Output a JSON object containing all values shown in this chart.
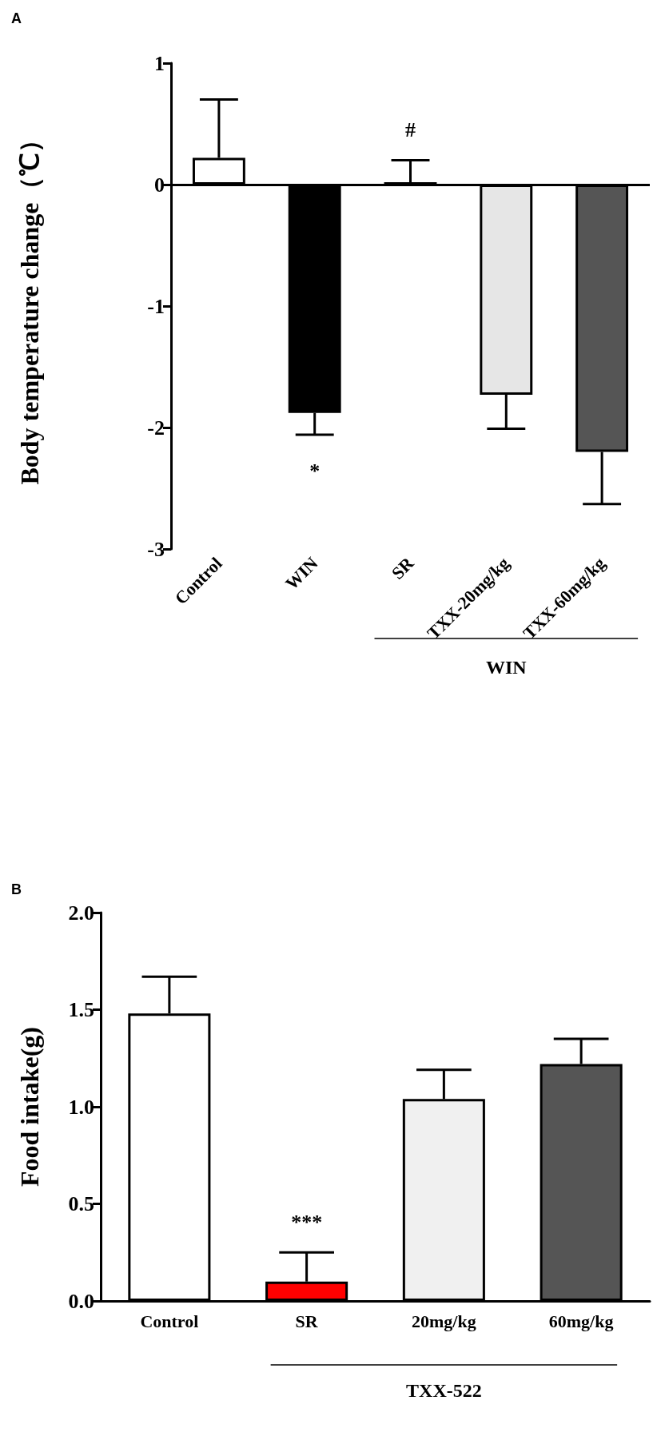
{
  "chart_data": [
    {
      "type": "bar",
      "ylabel": "Body temperature change（℃）",
      "categories": [
        "Control",
        "WIN",
        "SR",
        "TXX-20mg/kg",
        "TXX-60mg/kg"
      ],
      "values": [
        0.22,
        -1.88,
        0.02,
        -1.73,
        -2.2
      ],
      "colors": [
        "#ffffff",
        "#000000",
        "#ffffff",
        "#e6e6e6",
        "#555555"
      ],
      "errors": [
        [
          0.22,
          0.7
        ],
        [
          -2.06,
          -1.88
        ],
        [
          0.02,
          0.2
        ],
        [
          -2.01,
          -1.73
        ],
        [
          -2.63,
          -2.2
        ]
      ],
      "ylim": [
        -3,
        1
      ],
      "yticks": [
        -3,
        -2,
        -1,
        0,
        1
      ],
      "grid": false,
      "ref_lines": [
        {
          "axis": "y",
          "value": 0
        }
      ],
      "annotations": [
        "A",
        "*",
        "#",
        "WIN"
      ]
    },
    {
      "type": "bar",
      "ylabel": "Food intake(g)",
      "categories": [
        "Control",
        "SR",
        "20mg/kg",
        "60mg/kg"
      ],
      "values": [
        1.48,
        0.1,
        1.04,
        1.22
      ],
      "colors": [
        "#ffffff",
        "#ff0000",
        "#f0f0f0",
        "#555555"
      ],
      "errors": [
        [
          1.48,
          1.67
        ],
        [
          0.1,
          0.25
        ],
        [
          1.04,
          1.19
        ],
        [
          1.22,
          1.35
        ]
      ],
      "ylim": [
        0,
        2
      ],
      "yticks": [
        {
          "value": 0,
          "label": "0.0"
        },
        {
          "value": 0.5,
          "label": "0.5"
        },
        {
          "value": 1,
          "label": "1.0"
        },
        {
          "value": 1.5,
          "label": "1.5"
        },
        {
          "value": 2,
          "label": "2.0"
        }
      ],
      "grid": false,
      "annotations": [
        "B",
        "***",
        "TXX-522"
      ]
    }
  ]
}
